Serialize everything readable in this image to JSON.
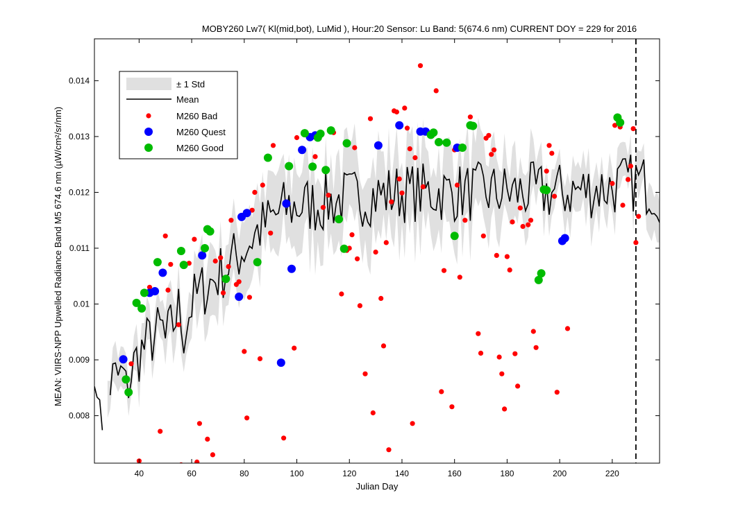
{
  "chart_data": {
    "type": "scatter",
    "title": "MOBY260   Lw7( Kl(mid,bot), LuMid ),   Hour:20 Sensor: Lu Band: 5(674.6 nm)   CURRENT DOY = 229 for 2016",
    "xlabel": "Julian Day",
    "ylabel": "MEAN: VIIRS-NPP Upwelled Radiance Band M5 674.6 nm (µW/cm²/sr/nm)",
    "xlim": [
      23,
      238
    ],
    "ylim": [
      0.00715,
      0.01475
    ],
    "xticks": [
      40,
      60,
      80,
      100,
      120,
      140,
      160,
      180,
      200,
      220
    ],
    "yticks": [
      0.008,
      0.009,
      0.01,
      0.011,
      0.012,
      0.013,
      0.014
    ],
    "ytick_labels": [
      "0.008",
      "0.009",
      "0.01",
      "0.011",
      "0.012",
      "0.013",
      "0.014"
    ],
    "current_doy": 229,
    "legend_position": "top-left",
    "legend": [
      "± 1 Std",
      "Mean",
      "M260 Bad",
      "M260 Quest",
      "M260 Good"
    ],
    "colors": {
      "std_band": "#e0e0e0",
      "mean": "#000000",
      "bad": "#ff0000",
      "quest": "#0000ff",
      "good": "#00bb00",
      "doy_line": "#000000"
    },
    "mean_anchors": [
      [
        23,
        0.0088
      ],
      [
        24,
        0.0081
      ],
      [
        25,
        0.0084
      ],
      [
        26,
        0.0079
      ],
      [
        30,
        0.00865
      ],
      [
        34,
        0.0087
      ],
      [
        35,
        0.00845
      ],
      [
        38,
        0.0089
      ],
      [
        40,
        0.0091
      ],
      [
        45,
        0.0094
      ],
      [
        49,
        0.00955
      ],
      [
        50,
        0.0093
      ],
      [
        55,
        0.0099
      ],
      [
        57,
        0.0095
      ],
      [
        60,
        0.01
      ],
      [
        65,
        0.0103
      ],
      [
        70,
        0.0105
      ],
      [
        75,
        0.01075
      ],
      [
        80,
        0.011
      ],
      [
        85,
        0.0113
      ],
      [
        90,
        0.0115
      ],
      [
        95,
        0.0117
      ],
      [
        100,
        0.01175
      ],
      [
        110,
        0.0118
      ],
      [
        120,
        0.0119
      ],
      [
        140,
        0.012
      ],
      [
        160,
        0.012
      ],
      [
        180,
        0.012
      ],
      [
        200,
        0.012
      ],
      [
        220,
        0.0121
      ],
      [
        230,
        0.0122
      ],
      [
        238,
        0.012
      ]
    ],
    "std_anchors": [
      [
        30,
        0.0003
      ],
      [
        60,
        0.0005
      ],
      [
        90,
        0.0006
      ],
      [
        120,
        0.0007
      ],
      [
        160,
        0.0007
      ],
      [
        200,
        0.0004
      ],
      [
        238,
        0.0004
      ]
    ],
    "series": [
      {
        "name": "M260 Bad",
        "marker": "small-dot",
        "points": [
          [
            37,
            0.00893
          ],
          [
            40,
            0.00719
          ],
          [
            44,
            0.0103
          ],
          [
            48,
            0.00772
          ],
          [
            50,
            0.01122
          ],
          [
            51,
            0.01025
          ],
          [
            52,
            0.01071
          ],
          [
            55,
            0.00963
          ],
          [
            56,
            0.00712
          ],
          [
            59,
            0.01073
          ],
          [
            61,
            0.01116
          ],
          [
            62,
            0.00717
          ],
          [
            63,
            0.00786
          ],
          [
            66,
            0.00758
          ],
          [
            68,
            0.0073
          ],
          [
            69,
            0.01077
          ],
          [
            71,
            0.01083
          ],
          [
            72,
            0.0102
          ],
          [
            74,
            0.01067
          ],
          [
            75,
            0.0115
          ],
          [
            77,
            0.01035
          ],
          [
            78,
            0.0104
          ],
          [
            80,
            0.00915
          ],
          [
            81,
            0.00796
          ],
          [
            82,
            0.01012
          ],
          [
            83,
            0.01168
          ],
          [
            84,
            0.012
          ],
          [
            86,
            0.00902
          ],
          [
            87,
            0.01213
          ],
          [
            90,
            0.01127
          ],
          [
            91,
            0.01284
          ],
          [
            95,
            0.0076
          ],
          [
            99,
            0.00921
          ],
          [
            100,
            0.01298
          ],
          [
            107,
            0.01264
          ],
          [
            110,
            0.01173
          ],
          [
            112,
            0.01195
          ],
          [
            114,
            0.01307
          ],
          [
            117,
            0.01018
          ],
          [
            119,
            0.01096
          ],
          [
            120,
            0.011
          ],
          [
            121,
            0.01124
          ],
          [
            122,
            0.0128
          ],
          [
            123,
            0.01081
          ],
          [
            124,
            0.00997
          ],
          [
            126,
            0.00875
          ],
          [
            128,
            0.01332
          ],
          [
            129,
            0.00805
          ],
          [
            130,
            0.01093
          ],
          [
            132,
            0.0101
          ],
          [
            133,
            0.00925
          ],
          [
            134,
            0.0111
          ],
          [
            135,
            0.00739
          ],
          [
            136,
            0.01183
          ],
          [
            137,
            0.01346
          ],
          [
            138,
            0.01344
          ],
          [
            139,
            0.01224
          ],
          [
            140,
            0.01199
          ],
          [
            141,
            0.01351
          ],
          [
            142,
            0.01315
          ],
          [
            143,
            0.01278
          ],
          [
            144,
            0.00786
          ],
          [
            145,
            0.01262
          ],
          [
            147,
            0.01427
          ],
          [
            148,
            0.0121
          ],
          [
            153,
            0.01382
          ],
          [
            155,
            0.00843
          ],
          [
            156,
            0.0106
          ],
          [
            159,
            0.00816
          ],
          [
            160,
            0.01276
          ],
          [
            161,
            0.01213
          ],
          [
            162,
            0.01048
          ],
          [
            164,
            0.0115
          ],
          [
            166,
            0.01335
          ],
          [
            169,
            0.00947
          ],
          [
            170,
            0.00912
          ],
          [
            171,
            0.01122
          ],
          [
            172,
            0.01297
          ],
          [
            173,
            0.01302
          ],
          [
            174,
            0.01268
          ],
          [
            175,
            0.01276
          ],
          [
            176,
            0.01087
          ],
          [
            177,
            0.00905
          ],
          [
            178,
            0.00875
          ],
          [
            179,
            0.00812
          ],
          [
            180,
            0.01085
          ],
          [
            181,
            0.01061
          ],
          [
            182,
            0.01147
          ],
          [
            183,
            0.00911
          ],
          [
            184,
            0.00853
          ],
          [
            185,
            0.01172
          ],
          [
            186,
            0.01139
          ],
          [
            188,
            0.01142
          ],
          [
            189,
            0.0115
          ],
          [
            190,
            0.00951
          ],
          [
            191,
            0.00922
          ],
          [
            195,
            0.01238
          ],
          [
            196,
            0.01284
          ],
          [
            197,
            0.0127
          ],
          [
            198,
            0.01193
          ],
          [
            199,
            0.00842
          ],
          [
            203,
            0.00956
          ],
          [
            220,
            0.01216
          ],
          [
            221,
            0.0132
          ],
          [
            223,
            0.01317
          ],
          [
            224,
            0.01177
          ],
          [
            226,
            0.01223
          ],
          [
            227,
            0.01247
          ],
          [
            228,
            0.01314
          ],
          [
            229,
            0.0111
          ],
          [
            230,
            0.01157
          ]
        ]
      },
      {
        "name": "M260 Quest",
        "marker": "large-dot",
        "points": [
          [
            34,
            0.00901
          ],
          [
            44,
            0.0102
          ],
          [
            46,
            0.01023
          ],
          [
            49,
            0.01056
          ],
          [
            64,
            0.01087
          ],
          [
            78,
            0.01013
          ],
          [
            79,
            0.01156
          ],
          [
            81,
            0.01163
          ],
          [
            94,
            0.00895
          ],
          [
            96,
            0.0118
          ],
          [
            98,
            0.01063
          ],
          [
            102,
            0.01276
          ],
          [
            105,
            0.01299
          ],
          [
            107,
            0.01302
          ],
          [
            131,
            0.01284
          ],
          [
            139,
            0.0132
          ],
          [
            147,
            0.01309
          ],
          [
            149,
            0.01309
          ],
          [
            161,
            0.0128
          ],
          [
            201,
            0.01113
          ],
          [
            202,
            0.01118
          ]
        ]
      },
      {
        "name": "M260 Good",
        "marker": "large-dot",
        "points": [
          [
            35,
            0.00865
          ],
          [
            36,
            0.00842
          ],
          [
            39,
            0.01002
          ],
          [
            41,
            0.00992
          ],
          [
            42,
            0.0102
          ],
          [
            47,
            0.01075
          ],
          [
            56,
            0.01095
          ],
          [
            57,
            0.0107
          ],
          [
            65,
            0.011
          ],
          [
            66,
            0.01134
          ],
          [
            67,
            0.0113
          ],
          [
            73,
            0.01045
          ],
          [
            85,
            0.01075
          ],
          [
            89,
            0.01262
          ],
          [
            97,
            0.01247
          ],
          [
            103,
            0.01306
          ],
          [
            106,
            0.01246
          ],
          [
            108,
            0.01298
          ],
          [
            109,
            0.01305
          ],
          [
            111,
            0.0124
          ],
          [
            113,
            0.01311
          ],
          [
            116,
            0.01152
          ],
          [
            118,
            0.01099
          ],
          [
            119,
            0.01288
          ],
          [
            151,
            0.01303
          ],
          [
            152,
            0.01307
          ],
          [
            154,
            0.0129
          ],
          [
            157,
            0.01289
          ],
          [
            160,
            0.01122
          ],
          [
            163,
            0.0128
          ],
          [
            166,
            0.0132
          ],
          [
            167,
            0.01319
          ],
          [
            192,
            0.01043
          ],
          [
            193,
            0.01055
          ],
          [
            194,
            0.01205
          ],
          [
            195,
            0.01204
          ],
          [
            222,
            0.01334
          ],
          [
            223,
            0.01325
          ]
        ]
      }
    ]
  }
}
